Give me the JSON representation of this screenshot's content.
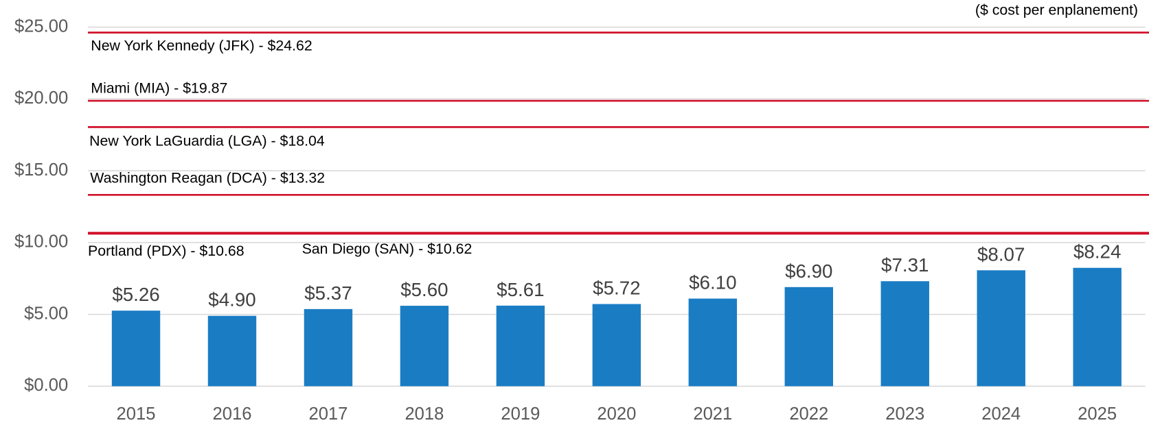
{
  "chart_data": {
    "type": "bar",
    "subtitle": "($ cost per enplanement)",
    "categories": [
      "2015",
      "2016",
      "2017",
      "2018",
      "2019",
      "2020",
      "2021",
      "2022",
      "2023",
      "2024",
      "2025"
    ],
    "values": [
      5.26,
      4.9,
      5.37,
      5.6,
      5.61,
      5.72,
      6.1,
      6.9,
      7.31,
      8.07,
      8.24
    ],
    "value_labels": [
      "$5.26",
      "$4.90",
      "$5.37",
      "$5.60",
      "$5.61",
      "$5.72",
      "$6.10",
      "$6.90",
      "$7.31",
      "$8.07",
      "$8.24"
    ],
    "color": "#1a7dc4",
    "ylim": [
      0,
      25
    ],
    "yticks": [
      {
        "value": 0,
        "label": "$0.00"
      },
      {
        "value": 5,
        "label": "$5.00"
      },
      {
        "value": 10,
        "label": "$10.00"
      },
      {
        "value": 15,
        "label": "$15.00"
      },
      {
        "value": 20,
        "label": "$20.00"
      },
      {
        "value": 25,
        "label": "$25.00"
      }
    ],
    "grid": true,
    "reference_lines": [
      {
        "label": "New York Kennedy (JFK) - $24.62",
        "value": 24.62
      },
      {
        "label": "Miami (MIA) - $19.87",
        "value": 19.87
      },
      {
        "label": "New York LaGuardia (LGA) - $18.04",
        "value": 18.04
      },
      {
        "label": "Washington Reagan (DCA) - $13.32",
        "value": 13.32
      },
      {
        "label": "Portland (PDX) - $10.68",
        "value": 10.68
      },
      {
        "label": "San Diego (SAN) - $10.62",
        "value": 10.62
      }
    ],
    "reference_color": "#d0112b"
  }
}
